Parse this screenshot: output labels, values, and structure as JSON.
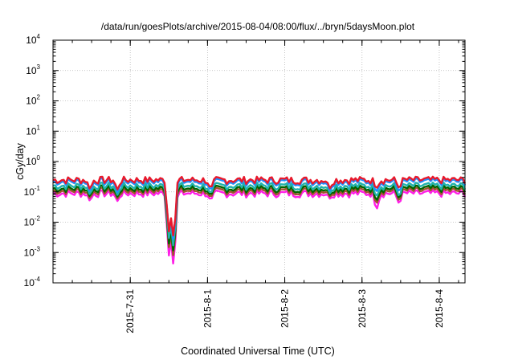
{
  "chart_data": {
    "type": "line",
    "title": "/data/run/goesPlots/archive/2015-08-04/08:00/flux/../bryn/5daysMoon.plot",
    "xlabel": "Coordinated Universal Time (UTC)",
    "ylabel": "cGy/day",
    "yscale": "log",
    "ylim": [
      0.0001,
      10000
    ],
    "xlim": [
      "2015-07-30T00:00",
      "2015-08-04T08:00"
    ],
    "grid": true,
    "y_ticks": [
      {
        "base": "10",
        "exp": "-4"
      },
      {
        "base": "10",
        "exp": "-3"
      },
      {
        "base": "10",
        "exp": "-2"
      },
      {
        "base": "10",
        "exp": "-1"
      },
      {
        "base": "10",
        "exp": "0"
      },
      {
        "base": "10",
        "exp": "1"
      },
      {
        "base": "10",
        "exp": "2"
      },
      {
        "base": "10",
        "exp": "3"
      },
      {
        "base": "10",
        "exp": "4"
      }
    ],
    "x_ticks": [
      {
        "label": "2015-7-31",
        "t": "2015-07-31T00:00"
      },
      {
        "label": "2015-8-1",
        "t": "2015-08-01T00:00"
      },
      {
        "label": "2015-8-2",
        "t": "2015-08-02T00:00"
      },
      {
        "label": "2015-8-3",
        "t": "2015-08-03T00:00"
      },
      {
        "label": "2015-8-4",
        "t": "2015-08-04T00:00"
      }
    ],
    "series": [
      {
        "color": "#e8192c",
        "baseline": 0.25,
        "dips": [
          {
            "t": "2015-07-30T11:30",
            "value": 0.12
          },
          {
            "t": "2015-07-30T20:00",
            "value": 0.12
          },
          {
            "t": "2015-07-31T12:00",
            "value": 0.005
          },
          {
            "t": "2015-07-31T13:30",
            "value": 0.002
          },
          {
            "t": "2015-08-01T01:00",
            "value": 0.12
          },
          {
            "t": "2015-08-02T14:00",
            "value": 0.13
          },
          {
            "t": "2015-08-03T04:30",
            "value": 0.13
          },
          {
            "t": "2015-08-03T11:30",
            "value": 0.13
          }
        ]
      },
      {
        "color": "#1e90ff",
        "baseline": 0.22,
        "dips": [
          {
            "t": "2015-07-30T11:30",
            "value": 0.1
          },
          {
            "t": "2015-07-30T20:00",
            "value": 0.1
          },
          {
            "t": "2015-07-31T12:00",
            "value": 0.005
          },
          {
            "t": "2015-07-31T13:30",
            "value": 0.0015
          },
          {
            "t": "2015-08-01T01:00",
            "value": 0.1
          },
          {
            "t": "2015-08-02T14:00",
            "value": 0.11
          },
          {
            "t": "2015-08-03T04:30",
            "value": 0.1
          },
          {
            "t": "2015-08-03T11:30",
            "value": 0.1
          }
        ]
      },
      {
        "color": "#20b2aa",
        "baseline": 0.16,
        "dips": [
          {
            "t": "2015-07-30T11:30",
            "value": 0.08
          },
          {
            "t": "2015-07-30T20:00",
            "value": 0.08
          },
          {
            "t": "2015-07-31T12:00",
            "value": 0.003
          },
          {
            "t": "2015-07-31T13:30",
            "value": 0.0009
          },
          {
            "t": "2015-08-01T01:00",
            "value": 0.08
          },
          {
            "t": "2015-08-02T14:00",
            "value": 0.09
          },
          {
            "t": "2015-08-03T04:30",
            "value": 0.07
          },
          {
            "t": "2015-08-03T11:30",
            "value": 0.07
          }
        ]
      },
      {
        "color": "#006400",
        "baseline": 0.13,
        "dips": [
          {
            "t": "2015-07-30T11:30",
            "value": 0.07
          },
          {
            "t": "2015-07-30T20:00",
            "value": 0.07
          },
          {
            "t": "2015-07-31T12:00",
            "value": 0.002
          },
          {
            "t": "2015-07-31T13:30",
            "value": 0.0006
          },
          {
            "t": "2015-08-01T01:00",
            "value": 0.07
          },
          {
            "t": "2015-08-02T14:00",
            "value": 0.08
          },
          {
            "t": "2015-08-03T04:30",
            "value": 0.05
          },
          {
            "t": "2015-08-03T11:30",
            "value": 0.06
          }
        ]
      },
      {
        "color": "#a0522d",
        "baseline": 0.11,
        "dips": [
          {
            "t": "2015-07-30T11:30",
            "value": 0.06
          },
          {
            "t": "2015-07-30T20:00",
            "value": 0.06
          },
          {
            "t": "2015-07-31T12:00",
            "value": 0.0015
          },
          {
            "t": "2015-07-31T13:30",
            "value": 0.0004
          },
          {
            "t": "2015-08-01T01:00",
            "value": 0.06
          },
          {
            "t": "2015-08-02T14:00",
            "value": 0.07
          },
          {
            "t": "2015-08-03T04:30",
            "value": 0.04
          },
          {
            "t": "2015-08-03T11:30",
            "value": 0.05
          }
        ]
      },
      {
        "color": "#ff1ee6",
        "baseline": 0.09,
        "dips": [
          {
            "t": "2015-07-30T11:30",
            "value": 0.05
          },
          {
            "t": "2015-07-30T20:00",
            "value": 0.05
          },
          {
            "t": "2015-07-31T12:00",
            "value": 0.0008
          },
          {
            "t": "2015-07-31T13:30",
            "value": 0.0002
          },
          {
            "t": "2015-08-01T01:00",
            "value": 0.05
          },
          {
            "t": "2015-08-02T14:00",
            "value": 0.06
          },
          {
            "t": "2015-08-03T04:30",
            "value": 0.025
          },
          {
            "t": "2015-08-03T11:30",
            "value": 0.04
          }
        ]
      }
    ]
  }
}
